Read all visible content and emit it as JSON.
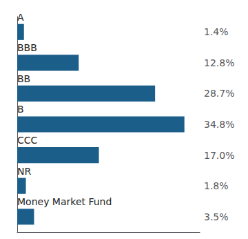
{
  "chart_data": {
    "type": "bar",
    "orientation": "horizontal",
    "categories": [
      "A",
      "BBB",
      "BB",
      "B",
      "CCC",
      "NR",
      "Money Market Fund"
    ],
    "values": [
      1.4,
      12.8,
      28.7,
      34.8,
      17.0,
      1.8,
      3.5
    ],
    "value_labels": [
      "1.4%",
      "12.8%",
      "28.7%",
      "34.8%",
      "17.0%",
      "1.8%",
      "3.5%"
    ],
    "color": "#1b5e8a",
    "xlim": [
      0,
      38
    ],
    "data_labels": true,
    "tick_labels": false,
    "grid": false
  }
}
